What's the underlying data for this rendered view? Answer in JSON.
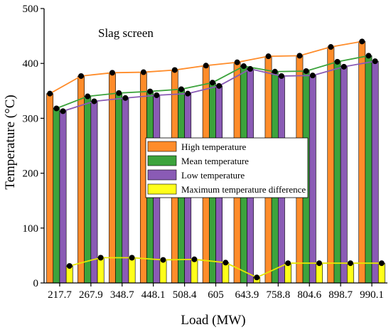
{
  "chart_data": {
    "type": "bar",
    "title": "",
    "annotation": "Slag screen",
    "xlabel": "Load (MW)",
    "ylabel": "Temperature (°C)",
    "ylim": [
      0,
      500
    ],
    "yticks": [
      0,
      100,
      200,
      300,
      400,
      500
    ],
    "categories": [
      "217.7",
      "267.9",
      "348.7",
      "448.1",
      "508.4",
      "605",
      "643.9",
      "758.8",
      "804.6",
      "898.7",
      "990.1"
    ],
    "legend_position": "center",
    "series": [
      {
        "name": "High  temperature",
        "color": "#ff8c2a",
        "line_color": "#ff8c2a",
        "values": [
          345,
          377,
          383,
          384,
          388,
          396,
          402,
          413,
          414,
          430,
          440
        ]
      },
      {
        "name": "Mean  temperature",
        "color": "#3ca33c",
        "line_color": "#3ca33c",
        "values": [
          318,
          340,
          346,
          349,
          353,
          365,
          395,
          385,
          386,
          403,
          414
        ]
      },
      {
        "name": "Low  temperature",
        "color": "#8a5bb5",
        "line_color": "#8a5bb5",
        "values": [
          313,
          331,
          337,
          342,
          345,
          359,
          390,
          377,
          378,
          394,
          404
        ]
      },
      {
        "name": "Maximum temperature difference",
        "color": "#ffff1a",
        "line_color": "#e6e600",
        "values": [
          31,
          46,
          46,
          42,
          43,
          37,
          10,
          36,
          36,
          36,
          36
        ]
      }
    ]
  }
}
